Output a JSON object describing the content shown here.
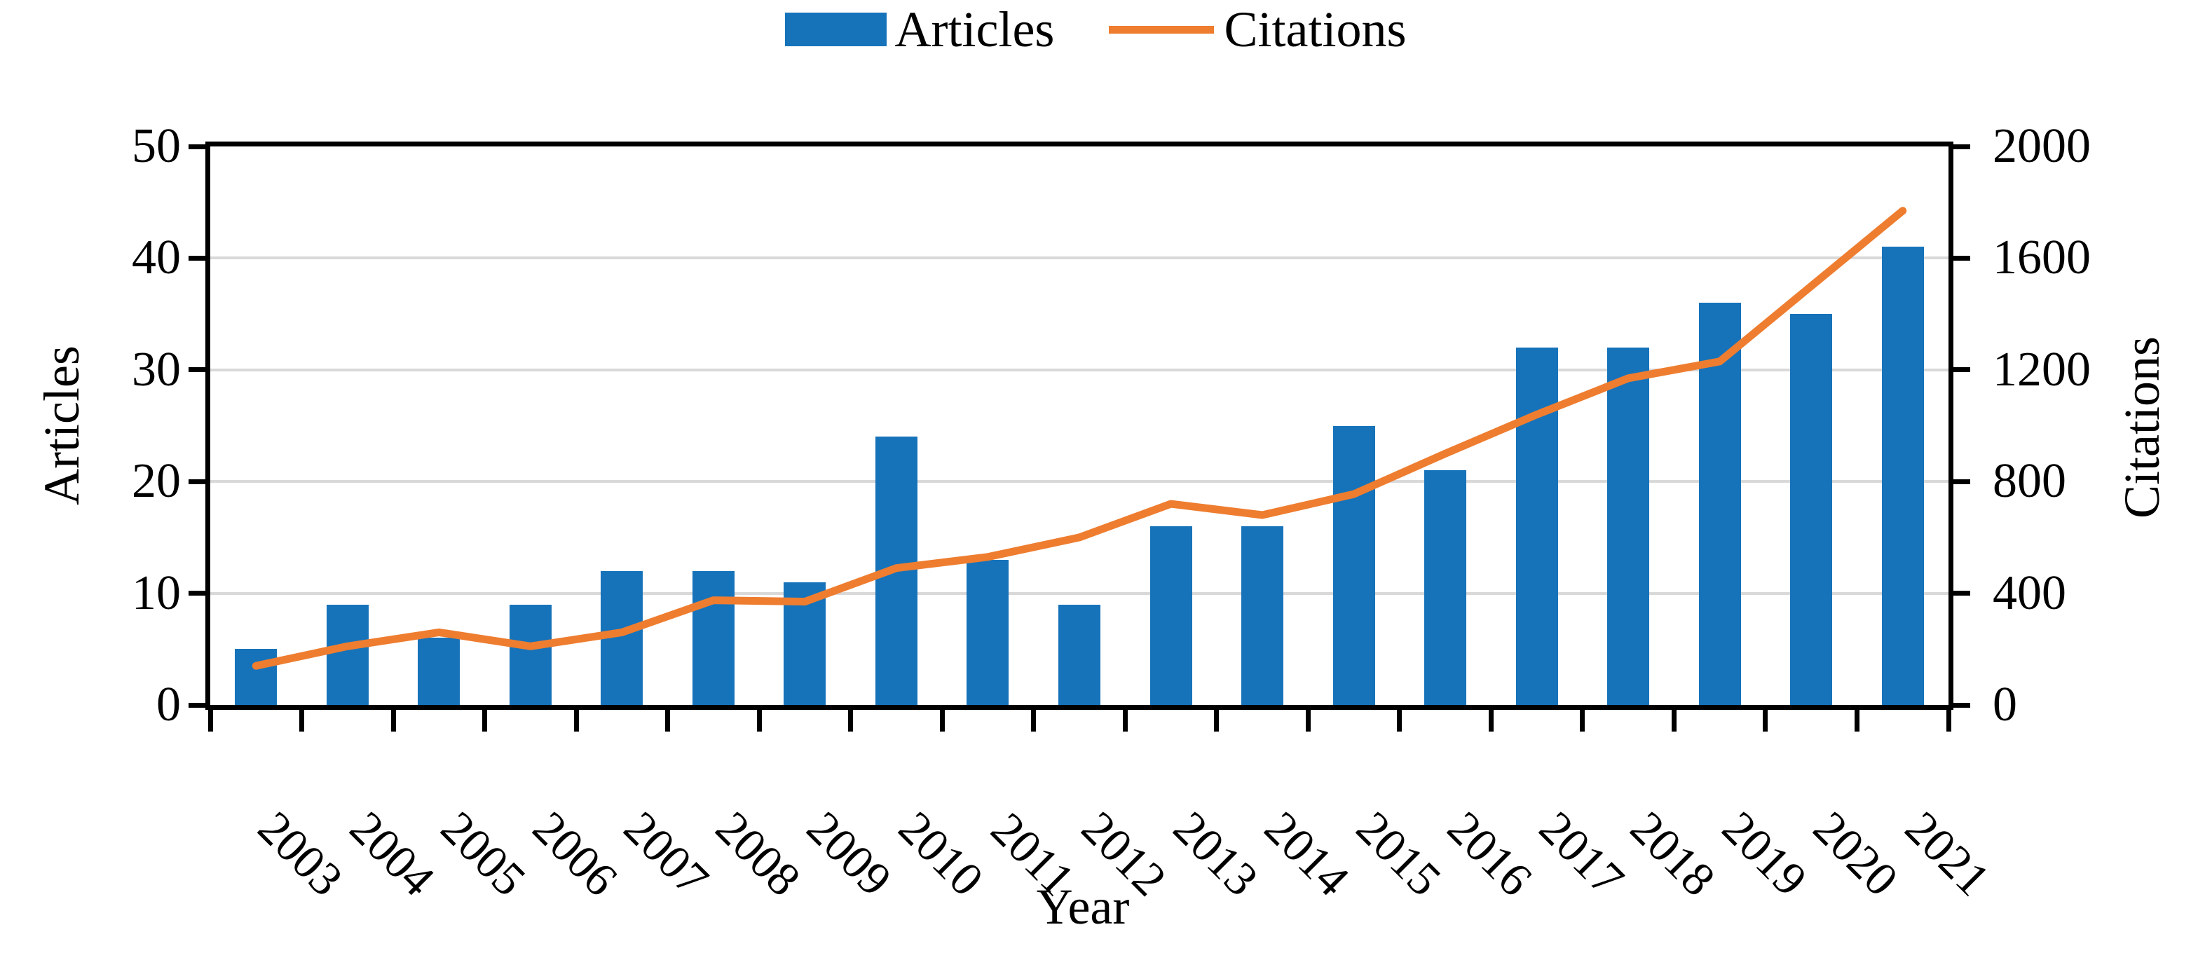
{
  "legend": {
    "articles_label": "Articles",
    "citations_label": "Citations"
  },
  "axes": {
    "left_title": "Articles",
    "right_title": "Citations",
    "x_title": "Year",
    "left_ticks": [
      "0",
      "10",
      "20",
      "30",
      "40",
      "50"
    ],
    "right_ticks": [
      "0",
      "400",
      "800",
      "1200",
      "1600",
      "2000"
    ]
  },
  "colors": {
    "bar": "#1673BA",
    "line": "#EE7D30",
    "gridline": "#D9D9D9",
    "axis": "#000000",
    "background": "#FFFFFF"
  },
  "chart_data": {
    "type": "bar",
    "subtype": "combo-bar-line-dual-axis",
    "categories": [
      "2003",
      "2004",
      "2005",
      "2006",
      "2007",
      "2008",
      "2009",
      "2010",
      "2011",
      "2012",
      "2013",
      "2014",
      "2015",
      "2016",
      "2017",
      "2018",
      "2019",
      "2020",
      "2021"
    ],
    "series": [
      {
        "name": "Articles",
        "type": "bar",
        "axis": "left",
        "values": [
          5,
          9,
          6,
          9,
          12,
          12,
          11,
          24,
          13,
          9,
          16,
          16,
          25,
          21,
          32,
          32,
          36,
          35,
          41
        ]
      },
      {
        "name": "Citations",
        "type": "line",
        "axis": "right",
        "values": [
          140,
          210,
          260,
          210,
          260,
          375,
          370,
          490,
          530,
          600,
          720,
          680,
          755,
          900,
          1040,
          1170,
          1230,
          1500,
          1770
        ]
      }
    ],
    "left_axis": {
      "label": "Articles",
      "min": 0,
      "max": 50,
      "step": 10
    },
    "right_axis": {
      "label": "Citations",
      "min": 0,
      "max": 2000,
      "step": 400
    },
    "xlabel": "Year",
    "title": "",
    "grid": "horizontal",
    "legend_position": "top-center"
  }
}
